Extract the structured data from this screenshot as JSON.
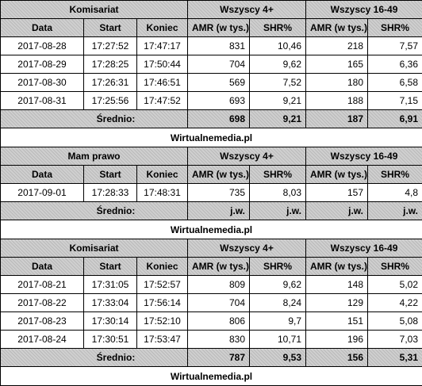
{
  "source": "Wirtualnemedia.pl",
  "tables": [
    {
      "show": "Komisariat",
      "groups": [
        "Wszyscy 4+",
        "Wszyscy 16-49"
      ],
      "headers": [
        "Data",
        "Start",
        "Koniec",
        "AMR (w tys.)",
        "SHR%",
        "AMR (w tys.)",
        "SHR%"
      ],
      "rows": [
        [
          "2017-08-28",
          "17:27:52",
          "17:47:17",
          "831",
          "10,46",
          "218",
          "7,57"
        ],
        [
          "2017-08-29",
          "17:28:25",
          "17:50:44",
          "704",
          "9,62",
          "165",
          "6,36"
        ],
        [
          "2017-08-30",
          "17:26:31",
          "17:46:51",
          "569",
          "7,52",
          "180",
          "6,58"
        ],
        [
          "2017-08-31",
          "17:25:56",
          "17:47:52",
          "693",
          "9,21",
          "188",
          "7,15"
        ]
      ],
      "average": {
        "label": "Średnio:",
        "values": [
          "698",
          "9,21",
          "187",
          "6,91"
        ]
      }
    },
    {
      "show": "Mam prawo",
      "groups": [
        "Wszyscy 4+",
        "Wszyscy 16-49"
      ],
      "headers": [
        "Data",
        "Start",
        "Koniec",
        "AMR (w tys.)",
        "SHR%",
        "AMR (w tys.)",
        "SHR%"
      ],
      "rows": [
        [
          "2017-09-01",
          "17:28:33",
          "17:48:31",
          "735",
          "8,03",
          "157",
          "4,8"
        ]
      ],
      "average": {
        "label": "Średnio:",
        "values": [
          "j.w.",
          "j.w.",
          "j.w.",
          "j.w."
        ]
      }
    },
    {
      "show": "Komisariat",
      "groups": [
        "Wszyscy 4+",
        "Wszyscy 16-49"
      ],
      "headers": [
        "Data",
        "Start",
        "Koniec",
        "AMR (w tys.)",
        "SHR%",
        "AMR (w tys.)",
        "SHR%"
      ],
      "rows": [
        [
          "2017-08-21",
          "17:31:05",
          "17:52:57",
          "809",
          "9,62",
          "148",
          "5,02"
        ],
        [
          "2017-08-22",
          "17:33:04",
          "17:56:14",
          "704",
          "8,24",
          "129",
          "4,22"
        ],
        [
          "2017-08-23",
          "17:30:14",
          "17:52:10",
          "806",
          "9,7",
          "151",
          "5,08"
        ],
        [
          "2017-08-24",
          "17:30:51",
          "17:53:47",
          "830",
          "10,71",
          "196",
          "7,03"
        ]
      ],
      "average": {
        "label": "Średnio:",
        "values": [
          "787",
          "9,53",
          "156",
          "5,31"
        ]
      }
    }
  ]
}
